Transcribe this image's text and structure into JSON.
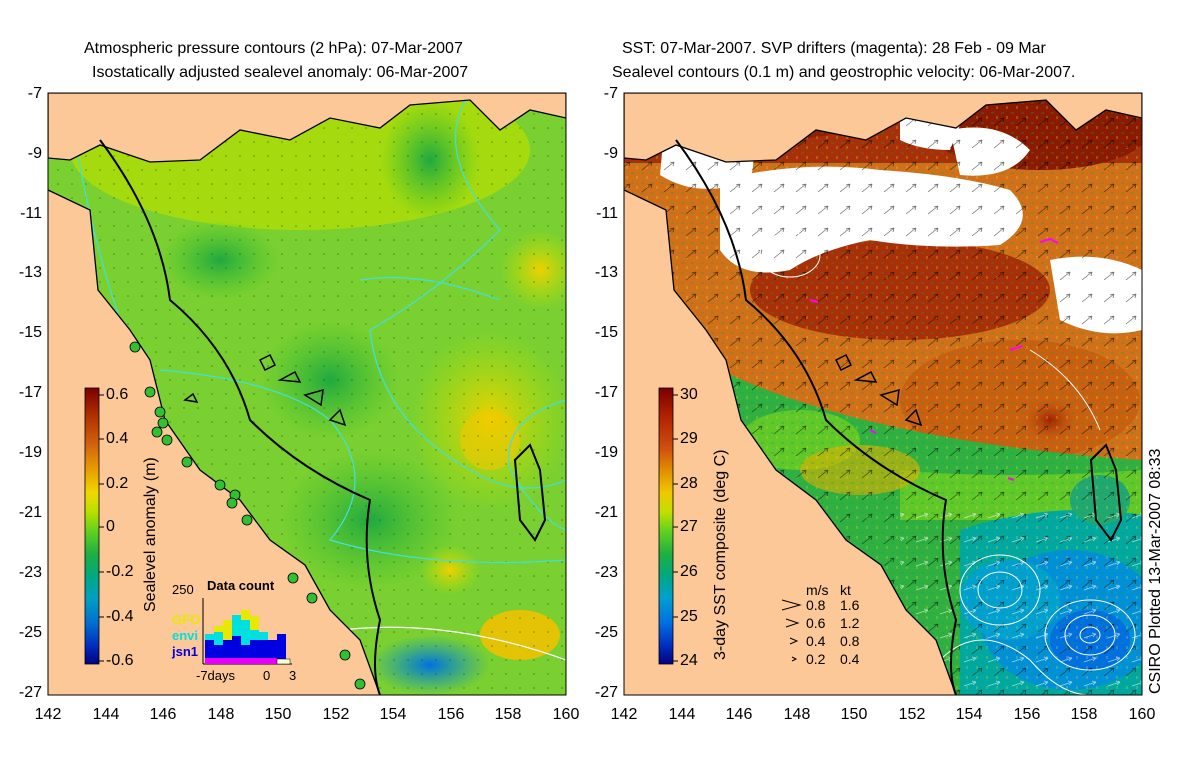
{
  "left_panel": {
    "title_line1": "Atmospheric pressure contours (2 hPa): 07-Mar-2007",
    "title_line2": "Isostatically adjusted sealevel anomaly: 06-Mar-2007",
    "lat_ticks": [
      "-7",
      "-9",
      "-11",
      "-13",
      "-15",
      "-17",
      "-19",
      "-21",
      "-23",
      "-25",
      "-27"
    ],
    "lon_ticks": [
      "142",
      "144",
      "146",
      "148",
      "150",
      "152",
      "154",
      "156",
      "158",
      "160"
    ],
    "colorbar": {
      "label": "Sealevel anomaly (m)",
      "ticks": [
        "0.6",
        "0.4",
        "0.2",
        "0",
        "-0.2",
        "-0.4",
        "-0.6"
      ],
      "colors": [
        "#7a0000",
        "#b03000",
        "#d06010",
        "#e8a000",
        "#f0d800",
        "#b8e000",
        "#60d020",
        "#20b040",
        "#00a880",
        "#00a0c0",
        "#0070d0",
        "#0030c0",
        "#000080"
      ]
    },
    "data_count": {
      "title": "Data count",
      "ymax": "250",
      "legend": [
        {
          "name": "GFO",
          "color": "#e8e800"
        },
        {
          "name": "envi",
          "color": "#00e0e0"
        },
        {
          "name": "jsn1",
          "color": "#0000e0"
        }
      ],
      "xlabel_left": "-7days",
      "xlabel_mid": "0",
      "xlabel_right": "3"
    }
  },
  "right_panel": {
    "title_line1": "SST: 07-Mar-2007. SVP drifters (magenta): 28 Feb - 09 Mar",
    "title_line2": "Sealevel contours (0.1 m) and geostrophic velocity: 06-Mar-2007.",
    "lat_ticks": [
      "-7",
      "-9",
      "-11",
      "-13",
      "-15",
      "-17",
      "-19",
      "-21",
      "-23",
      "-25",
      "-27"
    ],
    "lon_ticks": [
      "142",
      "144",
      "146",
      "148",
      "150",
      "152",
      "154",
      "156",
      "158",
      "160"
    ],
    "colorbar": {
      "label": "3-day SST composite (deg C)",
      "ticks": [
        "30",
        "29",
        "28",
        "27",
        "26",
        "25",
        "24"
      ],
      "colors": [
        "#7a0000",
        "#b02000",
        "#d05010",
        "#e09000",
        "#f0c800",
        "#c0e000",
        "#60d020",
        "#20b040",
        "#00a880",
        "#00a0d0",
        "#0070e0",
        "#0030c0",
        "#000080"
      ]
    },
    "velocity_legend": {
      "header_ms": "m/s",
      "header_kt": "kt",
      "rows": [
        {
          "ms": "0.8",
          "kt": "1.6"
        },
        {
          "ms": "0.6",
          "kt": "1.2"
        },
        {
          "ms": "0.4",
          "kt": "0.8"
        },
        {
          "ms": "0.2",
          "kt": "0.4"
        }
      ]
    }
  },
  "credit": "CSIRO Plotted 13-Mar-2007 08:33",
  "colors": {
    "land": "#fcc898",
    "coast": "#000000",
    "pressure_contour": "#40e0e0",
    "sst_contour": "#ffffff",
    "drifter": "#ff00ff"
  }
}
